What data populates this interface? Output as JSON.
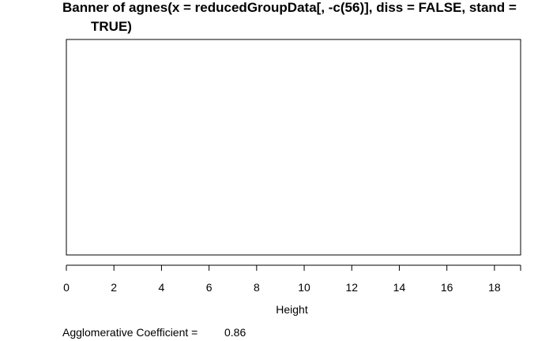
{
  "chart_data": {
    "type": "bar",
    "title_line1": "Banner of  agnes(x = reducedGroupData[, -c(56)], diss = FALSE, stand =",
    "title_line2": "TRUE)",
    "xlabel": "Height",
    "ylabel": "",
    "xlim": [
      0,
      19.1
    ],
    "x_ticks": [
      0,
      2,
      4,
      6,
      8,
      10,
      12,
      14,
      16,
      18
    ],
    "tick_labels": [
      "0",
      "2",
      "4",
      "6",
      "8",
      "10",
      "12",
      "14",
      "16",
      "18"
    ],
    "series": [],
    "grid": false,
    "footer": {
      "label": "Agglomerative Coefficient =",
      "value": "0.86"
    },
    "colors": {
      "foreground": "#000000",
      "background": "#ffffff"
    }
  }
}
